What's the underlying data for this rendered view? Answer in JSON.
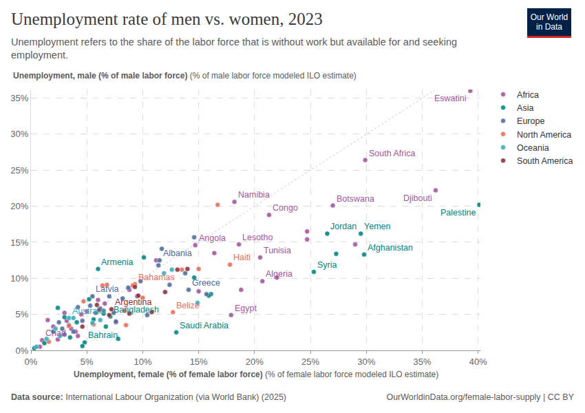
{
  "chart_data": {
    "type": "scatter",
    "title": "Unemployment rate of men vs. women, 2023",
    "subtitle": "Unemployment refers to the share of the labor force that is without work but available for and seeking employment.",
    "logo": "Our World in Data",
    "x_label": "Unemployment, female (% of female labor force)",
    "x_label_note": "(% of female labor force modeled ILO estimate)",
    "y_label": "Unemployment, male (% of male labor force)",
    "y_label_note": "(% of male labor force modeled ILO estimate)",
    "source_label": "Data source:",
    "source": "International Labour Organization (via World Bank) (2025)",
    "url": "OurWorldinData.org/female-labor-supply | CC BY",
    "xlim": [
      0,
      40.2
    ],
    "ylim": [
      0,
      36.2
    ],
    "xticks": [
      {
        "value": 0,
        "label": "0%"
      },
      {
        "value": 5,
        "label": "5%"
      },
      {
        "value": 10,
        "label": "10%"
      },
      {
        "value": 15,
        "label": "15%"
      },
      {
        "value": 20,
        "label": "20%"
      },
      {
        "value": 25,
        "label": "25%"
      },
      {
        "value": 30,
        "label": "30%"
      },
      {
        "value": 35,
        "label": "35%"
      },
      {
        "value": 40,
        "label": "40%"
      }
    ],
    "yticks": [
      {
        "value": 0,
        "label": "0%"
      },
      {
        "value": 5,
        "label": "5%"
      },
      {
        "value": 10,
        "label": "10%"
      },
      {
        "value": 15,
        "label": "15%"
      },
      {
        "value": 20,
        "label": "20%"
      },
      {
        "value": 25,
        "label": "25%"
      },
      {
        "value": 30,
        "label": "30%"
      },
      {
        "value": 35,
        "label": "35%"
      }
    ],
    "grid": true,
    "legend": "right",
    "series": [
      {
        "name": "Africa",
        "color": "#a2559c",
        "x": [
          39.3,
          29.9,
          36.2,
          18.2,
          21.3,
          27.0,
          14.7,
          18.6,
          20.5,
          20.7,
          17.9,
          1.0,
          24.7,
          24.7,
          16.4,
          18.8,
          22.0,
          29.0,
          11.2,
          6.0,
          5.0,
          3.2,
          2.0,
          1.5,
          4.0,
          7.6,
          6.6,
          3.6,
          4.5,
          2.4,
          0.8,
          8.8,
          9.5,
          4.2,
          3.0,
          15.0
        ],
        "values": [
          36.0,
          26.4,
          22.2,
          20.6,
          18.8,
          20.1,
          14.6,
          14.7,
          12.9,
          9.6,
          4.9,
          1.4,
          16.5,
          15.4,
          13.5,
          8.4,
          10.1,
          14.7,
          12.5,
          7.0,
          5.4,
          4.1,
          3.3,
          4.2,
          2.6,
          3.9,
          6.5,
          3.0,
          5.0,
          1.5,
          0.5,
          8.4,
          7.5,
          2.0,
          5.2,
          8.2
        ],
        "labels": [
          "Eswatini",
          "South Africa",
          "Djibouti",
          "Namibia",
          "Congo",
          "Botswana",
          "Angola",
          "Lesotho",
          "Tunisia",
          "Algeria",
          "Egypt",
          "Chad",
          null,
          null,
          null,
          null,
          null,
          null,
          null,
          null,
          null,
          null,
          null,
          null,
          null,
          null,
          null,
          null,
          null,
          null,
          null,
          null,
          null,
          null,
          null,
          null
        ]
      },
      {
        "name": "Asia",
        "color": "#00847e",
        "x": [
          40.1,
          26.5,
          29.5,
          29.8,
          6.0,
          25.3,
          7.1,
          13.0,
          4.8,
          27.3,
          10.1,
          14.6,
          16.1,
          15.9,
          7.8,
          2.4,
          6.5,
          5.2,
          0.3,
          3.0,
          2.0,
          4.1,
          5.6,
          1.2,
          3.5,
          6.7,
          4.6
        ],
        "values": [
          20.2,
          16.2,
          16.2,
          13.3,
          11.3,
          10.9,
          4.7,
          2.5,
          1.1,
          13.4,
          12.9,
          10.1,
          7.8,
          7.6,
          1.6,
          5.9,
          5.1,
          7.1,
          0.3,
          4.6,
          2.6,
          3.9,
          4.3,
          1.0,
          1.8,
          3.3,
          0.6
        ],
        "labels": [
          "Palestine",
          "Jordan",
          "Yemen",
          "Afghanistan",
          "Armenia",
          "Syria",
          "Bangladesh",
          "Saudi Arabia",
          "Bahrain",
          null,
          null,
          null,
          null,
          null,
          null,
          null,
          null,
          null,
          null,
          null,
          null,
          null,
          null,
          null,
          null,
          null,
          null
        ]
      },
      {
        "name": "Europe",
        "color": "#4c6a9c",
        "x": [
          11.5,
          5.5,
          14.1,
          14.6,
          11.7,
          11.4,
          13.8,
          12.4,
          15.7,
          8.2,
          8.7,
          10.4,
          7.6,
          3.4,
          2.8,
          4.6,
          5.3,
          6.2,
          3.8,
          7.0,
          9.8,
          5.8,
          4.2,
          3.0,
          6.5,
          2.5,
          7.4
        ],
        "values": [
          12.5,
          7.5,
          8.4,
          15.7,
          14.1,
          11.8,
          10.7,
          9.1,
          7.8,
          7.2,
          8.7,
          4.9,
          4.0,
          3.5,
          3.0,
          4.1,
          6.2,
          5.8,
          2.6,
          7.5,
          9.6,
          5.2,
          6.0,
          2.2,
          5.5,
          3.9,
          5.2
        ],
        "labels": [
          "Albania",
          "Latvia",
          "Greece",
          null,
          null,
          null,
          null,
          null,
          null,
          null,
          null,
          null,
          null,
          null,
          null,
          null,
          null,
          null,
          null,
          null,
          null,
          null,
          null,
          null,
          null,
          null,
          null
        ]
      },
      {
        "name": "North America",
        "color": "#e56e5a",
        "x": [
          17.8,
          9.3,
          12.7,
          16.7,
          15.0,
          13.5,
          6.8,
          10.0,
          8.5,
          4.7,
          9.1,
          8.4,
          5.6,
          3.4,
          6.4,
          1.6
        ],
        "values": [
          11.9,
          9.2,
          5.3,
          20.2,
          11.3,
          11.2,
          9.1,
          7.3,
          3.5,
          6.8,
          9.0,
          5.5,
          3.6,
          3.4,
          9.0,
          1.2
        ],
        "labels": [
          "Haiti",
          "Bahamas",
          "Belize",
          null,
          null,
          null,
          null,
          null,
          null,
          null,
          null,
          null,
          null,
          null,
          null,
          null
        ]
      },
      {
        "name": "Oceania",
        "color": "#38aaba",
        "x": [
          3.4,
          11.9,
          12.6,
          14.9,
          2.6,
          0.5,
          3.8,
          5.5,
          2.2,
          1.4,
          6.2
        ],
        "values": [
          4.5,
          10.7,
          11.2,
          6.6,
          2.0,
          0.5,
          4.5,
          3.8,
          3.0,
          1.6,
          4.2
        ],
        "labels": [
          "Australia",
          null,
          null,
          null,
          null,
          null,
          null,
          null,
          null,
          null,
          null
        ]
      },
      {
        "name": "South America",
        "color": "#883039",
        "x": [
          7.2,
          14.0,
          13.1,
          12.0,
          9.3,
          10.8,
          8.8,
          6.1,
          4.6,
          7.0,
          5.9,
          9.6
        ],
        "values": [
          5.7,
          11.3,
          11.2,
          8.1,
          8.8,
          5.3,
          5.1,
          5.6,
          3.3,
          4.9,
          6.3,
          7.6
        ],
        "labels": [
          "Argentina",
          null,
          null,
          null,
          null,
          null,
          null,
          null,
          null,
          null,
          null,
          null
        ]
      }
    ]
  }
}
